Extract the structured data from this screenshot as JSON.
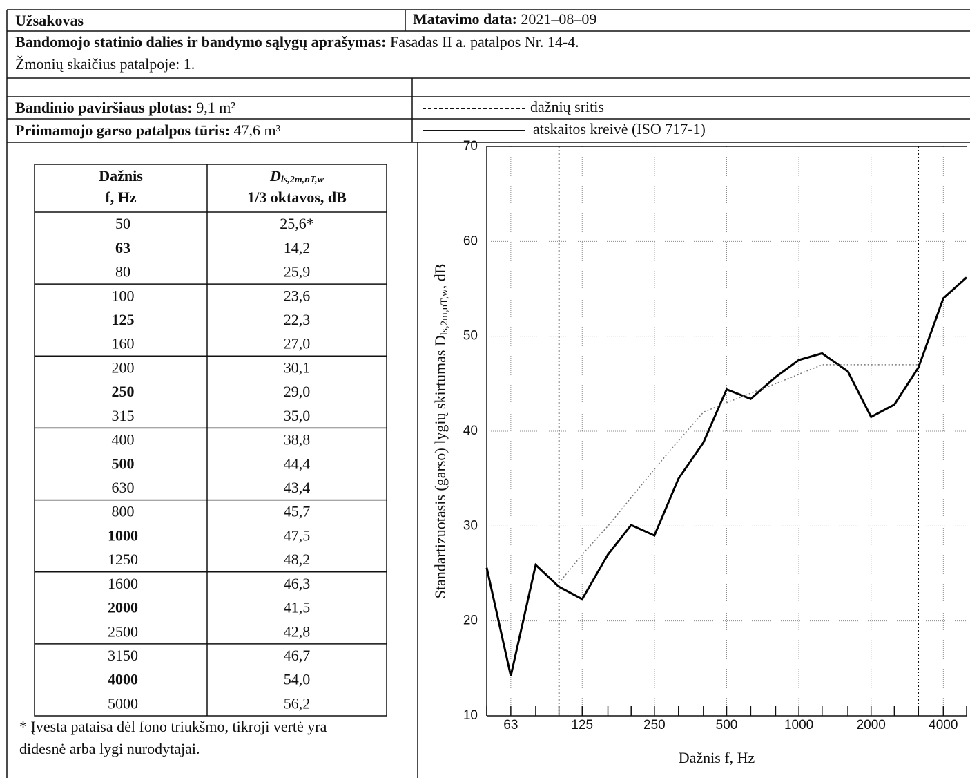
{
  "header": {
    "customer_label": "Užsakovas",
    "date_label": "Matavimo data:",
    "date": "2021–08–09"
  },
  "description": {
    "label": "Bandomojo statinio dalies ir bandymo sąlygų aprašymas:",
    "text": "Fasadas II a. patalpos Nr. 14-4.",
    "people": "Žmonių skaičius patalpoje: 1."
  },
  "specimen": {
    "area_label": "Bandinio paviršiaus plotas:",
    "area": "9,1 m²",
    "volume_label": "Priimamojo garso patalpos tūris:",
    "volume": "47,6 m³"
  },
  "legend": [
    "dažnių sritis",
    "atskaitos kreivė (ISO 717-1)"
  ],
  "table": {
    "col1": [
      "Dažnis",
      "f, Hz"
    ],
    "col2_symbol": "D",
    "col2_sub": "ls,2m,nT,w",
    "col2_unit": "1/3 oktavos, dB"
  },
  "footnote": "* Įvesta pataisa dėl fono triukšmo, tikroji vertė yra didesnė arba lygi nurodytajai.",
  "chart_data": {
    "type": "line",
    "ylabel": "Standartizuotasis (garso) lygių skirtumas D",
    "ylabel_sub": "ls,2m,nT,w",
    "ylabel_unit": ", dB",
    "xlabel": "Dažnis f, Hz",
    "x": [
      50,
      63,
      80,
      100,
      125,
      160,
      200,
      250,
      315,
      400,
      500,
      630,
      800,
      1000,
      1250,
      1600,
      2000,
      2500,
      3150,
      4000,
      5000
    ],
    "series": [
      {
        "name": "measured",
        "color": "#000000",
        "values": [
          25.6,
          14.2,
          25.9,
          23.6,
          22.3,
          27.0,
          30.1,
          29.0,
          35.0,
          38.8,
          44.4,
          43.4,
          45.7,
          47.5,
          48.2,
          46.3,
          41.5,
          42.8,
          46.7,
          54.0,
          56.2
        ],
        "value_labels": [
          "25,6*",
          "14,2",
          "25,9",
          "23,6",
          "22,3",
          "27,0",
          "30,1",
          "29,0",
          "35,0",
          "38,8",
          "44,4",
          "43,4",
          "45,7",
          "47,5",
          "48,2",
          "46,3",
          "41,5",
          "42,8",
          "46,7",
          "54,0",
          "56,2"
        ]
      },
      {
        "name": "reference",
        "color": "#777777",
        "values": [
          null,
          null,
          null,
          24,
          27,
          30,
          33,
          36,
          39,
          42,
          43,
          44,
          45,
          46,
          47,
          47,
          47,
          47,
          47,
          null,
          null
        ]
      }
    ],
    "freq_range": [
      100,
      3150
    ],
    "xlim": [
      50,
      5000
    ],
    "xscale": "log",
    "xticks": [
      63,
      125,
      250,
      500,
      1000,
      2000,
      4000
    ],
    "ylim": [
      10,
      70
    ],
    "yticks": [
      10,
      20,
      30,
      40,
      50,
      60,
      70
    ],
    "grid": true
  }
}
